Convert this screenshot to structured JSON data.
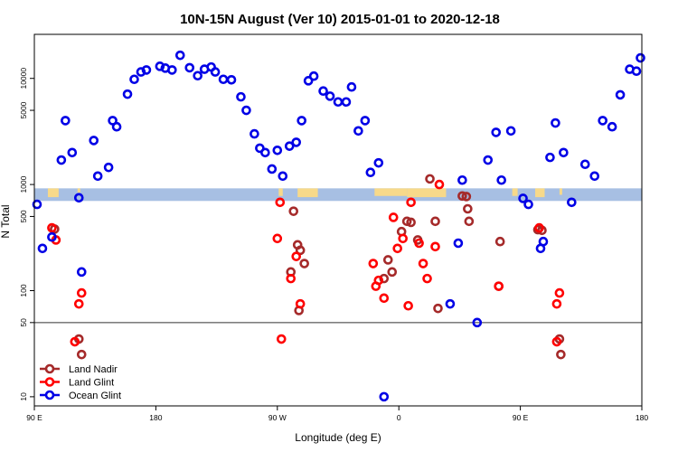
{
  "chart_data": {
    "type": "scatter",
    "title": "10N-15N August (Ver 10)   2015-01-01 to 2020-12-18",
    "xlabel": "Longitude (deg E)",
    "ylabel": "N Total",
    "y_scale": "log",
    "xlim": [
      90,
      540
    ],
    "ylim": [
      8.2,
      26000
    ],
    "x_ticks": [
      {
        "value": 90,
        "label": "90 E"
      },
      {
        "value": 180,
        "label": "180"
      },
      {
        "value": 270,
        "label": "90 W"
      },
      {
        "value": 360,
        "label": "0"
      },
      {
        "value": 450,
        "label": "90 E"
      },
      {
        "value": 540,
        "label": "180"
      }
    ],
    "y_ticks": [
      {
        "value": 10,
        "label": "10"
      },
      {
        "value": 50,
        "label": "50"
      },
      {
        "value": 100,
        "label": "100"
      },
      {
        "value": 500,
        "label": "500"
      },
      {
        "value": 1000,
        "label": "1000"
      },
      {
        "value": 5000,
        "label": "5000"
      },
      {
        "value": 10000,
        "label": "10000"
      }
    ],
    "reference_line": {
      "y": 50
    },
    "band": {
      "y_range": [
        700,
        920
      ],
      "color": "#a7bfe3",
      "fill_color": "#f7d98a",
      "fill_intervals": [
        {
          "x_start": 100,
          "x_end": 108,
          "y_low": 760
        },
        {
          "x_start": 122,
          "x_end": 124,
          "y_low": 840
        },
        {
          "x_start": 271,
          "x_end": 274,
          "y_low": 780
        },
        {
          "x_start": 285,
          "x_end": 300,
          "y_low": 760
        },
        {
          "x_start": 342,
          "x_end": 366,
          "y_low": 780
        },
        {
          "x_start": 366,
          "x_end": 395,
          "y_low": 760
        },
        {
          "x_start": 444,
          "x_end": 448,
          "y_low": 780
        },
        {
          "x_start": 461,
          "x_end": 468,
          "y_low": 760
        },
        {
          "x_start": 479,
          "x_end": 481,
          "y_low": 800
        }
      ]
    },
    "legend": {
      "position": "bottom-left"
    },
    "series": [
      {
        "name": "Land Nadir",
        "color": "#a52a2a",
        "points": [
          [
            105,
            380
          ],
          [
            123,
            35
          ],
          [
            125,
            25
          ],
          [
            282,
            560
          ],
          [
            285,
            270
          ],
          [
            286,
            65
          ],
          [
            287,
            240
          ],
          [
            290,
            180
          ],
          [
            280,
            150
          ],
          [
            349,
            130
          ],
          [
            352,
            195
          ],
          [
            355,
            150
          ],
          [
            362,
            360
          ],
          [
            366,
            450
          ],
          [
            369,
            440
          ],
          [
            374,
            300
          ],
          [
            383,
            1130
          ],
          [
            387,
            450
          ],
          [
            389,
            68
          ],
          [
            407,
            780
          ],
          [
            410,
            770
          ],
          [
            411,
            590
          ],
          [
            412,
            450
          ],
          [
            434,
            110
          ],
          [
            435,
            290
          ],
          [
            466,
            370
          ],
          [
            463,
            375
          ],
          [
            479,
            35
          ],
          [
            480,
            25
          ]
        ]
      },
      {
        "name": "Land Glint",
        "color": "#ff0000",
        "points": [
          [
            103,
            390
          ],
          [
            106,
            300
          ],
          [
            120,
            33
          ],
          [
            123,
            75
          ],
          [
            125,
            95
          ],
          [
            270,
            310
          ],
          [
            272,
            680
          ],
          [
            273,
            35
          ],
          [
            280,
            130
          ],
          [
            284,
            210
          ],
          [
            287,
            75
          ],
          [
            341,
            180
          ],
          [
            343,
            110
          ],
          [
            345,
            125
          ],
          [
            349,
            85
          ],
          [
            356,
            490
          ],
          [
            359,
            250
          ],
          [
            363,
            310
          ],
          [
            367,
            72
          ],
          [
            369,
            680
          ],
          [
            375,
            280
          ],
          [
            378,
            180
          ],
          [
            381,
            130
          ],
          [
            387,
            260
          ],
          [
            390,
            1000
          ],
          [
            434,
            110
          ],
          [
            464,
            390
          ],
          [
            477,
            75
          ],
          [
            479,
            95
          ],
          [
            477,
            33
          ]
        ]
      },
      {
        "name": "Ocean Glint",
        "color": "#0000e6",
        "points": [
          [
            92,
            650
          ],
          [
            96,
            250
          ],
          [
            103,
            320
          ],
          [
            110,
            1700
          ],
          [
            113,
            4000
          ],
          [
            118,
            2000
          ],
          [
            123,
            750
          ],
          [
            125,
            150
          ],
          [
            134,
            2600
          ],
          [
            137,
            1200
          ],
          [
            145,
            1450
          ],
          [
            148,
            4000
          ],
          [
            151,
            3500
          ],
          [
            159,
            7100
          ],
          [
            164,
            9800
          ],
          [
            169,
            11500
          ],
          [
            173,
            12000
          ],
          [
            183,
            13000
          ],
          [
            187,
            12500
          ],
          [
            192,
            12000
          ],
          [
            198,
            16500
          ],
          [
            205,
            12600
          ],
          [
            211,
            10600
          ],
          [
            216,
            12200
          ],
          [
            221,
            12800
          ],
          [
            224,
            11500
          ],
          [
            230,
            9800
          ],
          [
            236,
            9700
          ],
          [
            243,
            6700
          ],
          [
            247,
            5000
          ],
          [
            253,
            3000
          ],
          [
            257,
            2200
          ],
          [
            261,
            2000
          ],
          [
            266,
            1400
          ],
          [
            270,
            2100
          ],
          [
            274,
            1200
          ],
          [
            279,
            2300
          ],
          [
            284,
            2500
          ],
          [
            288,
            4000
          ],
          [
            293,
            9500
          ],
          [
            297,
            10500
          ],
          [
            304,
            7600
          ],
          [
            309,
            6800
          ],
          [
            315,
            6000
          ],
          [
            321,
            6000
          ],
          [
            325,
            8300
          ],
          [
            330,
            3200
          ],
          [
            335,
            4000
          ],
          [
            339,
            1300
          ],
          [
            345,
            1600
          ],
          [
            349,
            10
          ],
          [
            398,
            75
          ],
          [
            404,
            280
          ],
          [
            407,
            1100
          ],
          [
            418,
            50
          ],
          [
            426,
            1700
          ],
          [
            432,
            3100
          ],
          [
            436,
            1100
          ],
          [
            443,
            3200
          ],
          [
            452,
            740
          ],
          [
            456,
            650
          ],
          [
            465,
            250
          ],
          [
            472,
            1800
          ],
          [
            476,
            3800
          ],
          [
            482,
            2000
          ],
          [
            488,
            680
          ],
          [
            498,
            1550
          ],
          [
            505,
            1200
          ],
          [
            511,
            4000
          ],
          [
            518,
            3500
          ],
          [
            524,
            7000
          ],
          [
            531,
            12200
          ],
          [
            536,
            11700
          ],
          [
            539,
            15600
          ],
          [
            467,
            290
          ]
        ]
      }
    ]
  }
}
